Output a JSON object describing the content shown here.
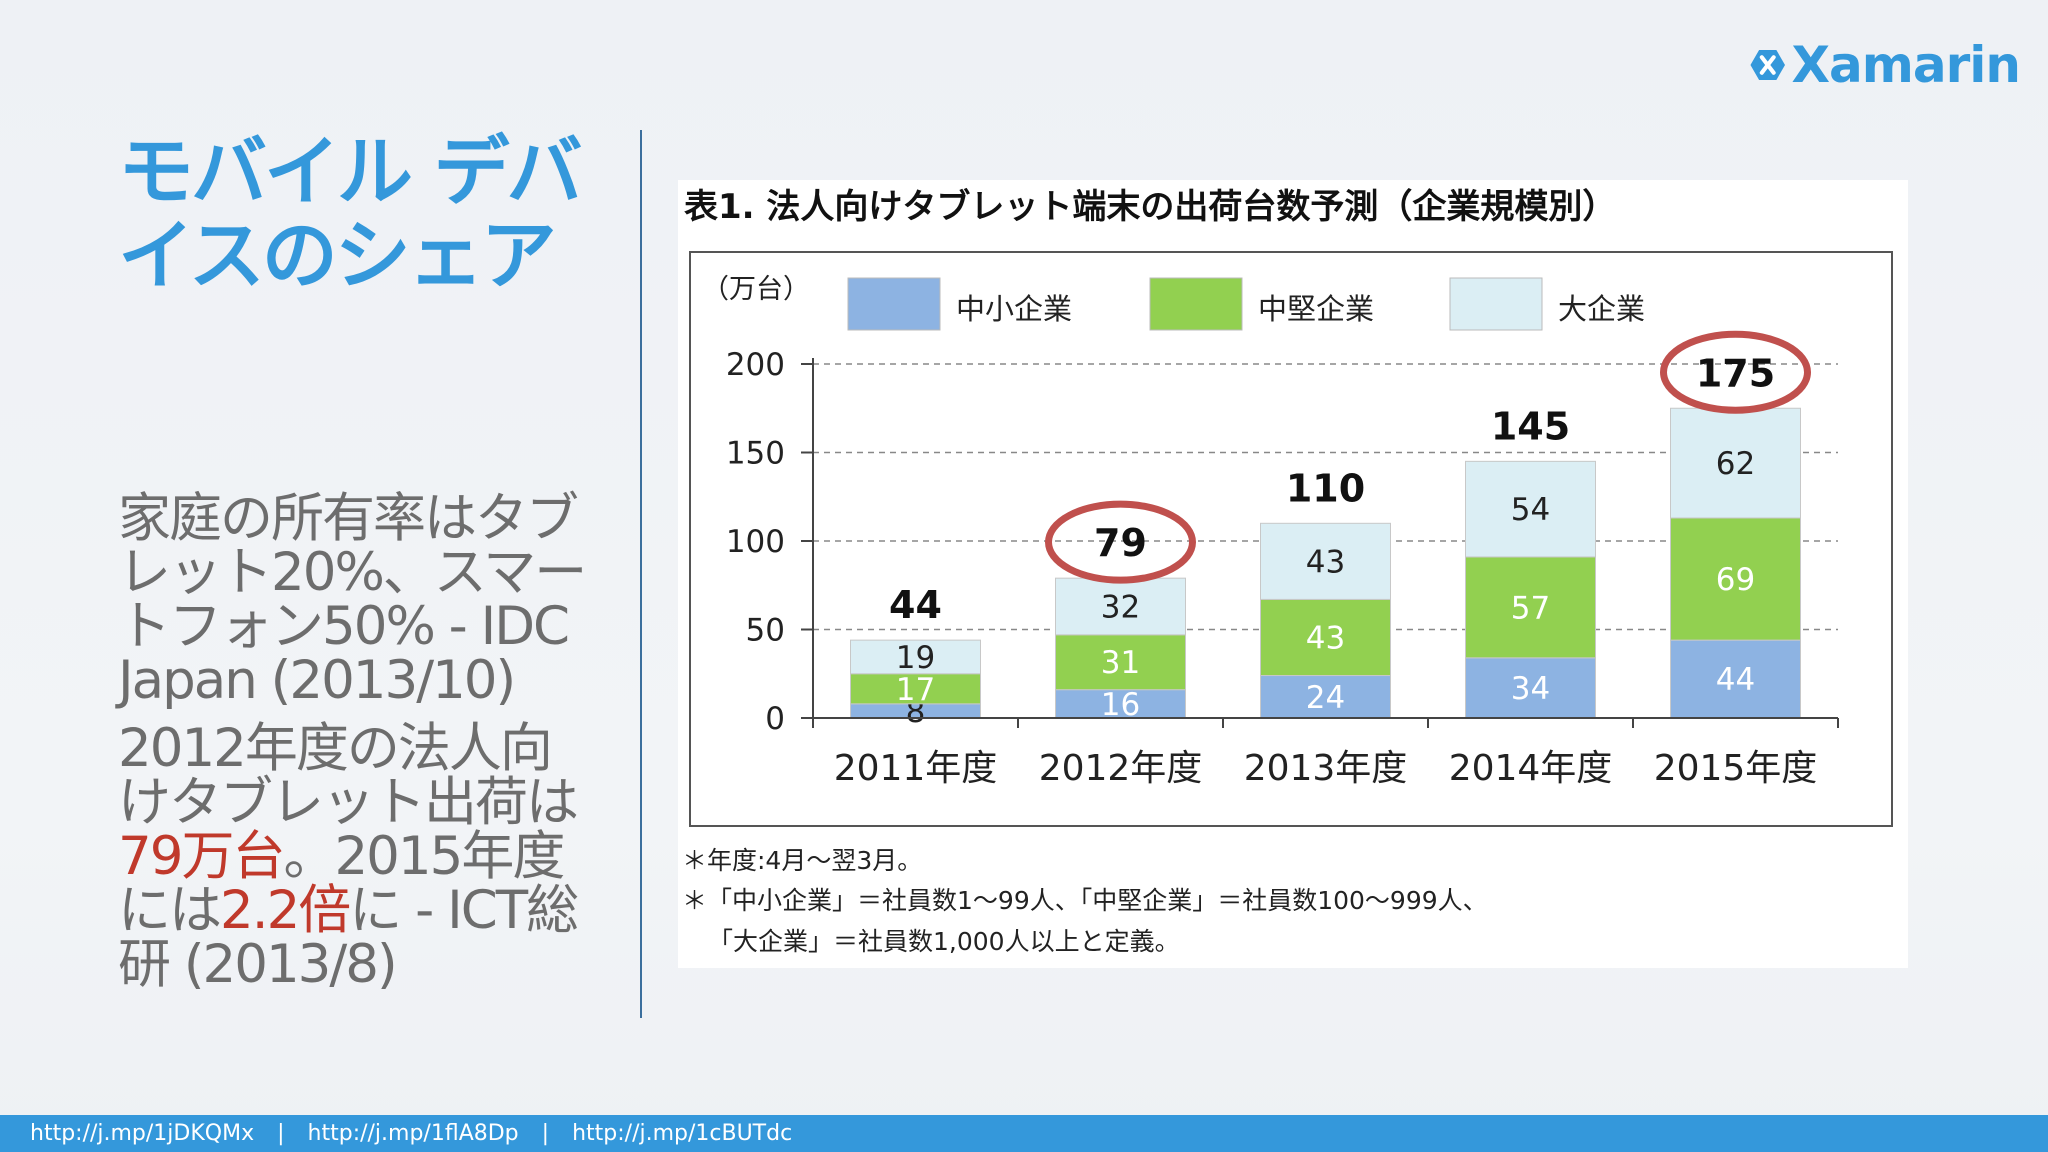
{
  "slide": {
    "logo_text": "Xamarin",
    "title_line1": "モバイル デバ",
    "title_line2": "イスのシェア",
    "para1": "家庭の所有率はタブレット20%、スマートフォン50% - IDC Japan (2013/10)",
    "para2_a": "2012年度の法人向けタブレット出荷は",
    "para2_hl1": "79万台",
    "para2_b": "。2015年度には",
    "para2_hl2": "2.2倍",
    "para2_c": "に - ICT総研 (2013/8)",
    "footer_links": [
      "http://j.mp/1jDKQMx",
      "http://j.mp/1flA8Dp",
      "http://j.mp/1cBUTdc"
    ],
    "footer_sep": "|"
  },
  "chart_data": {
    "type": "bar",
    "stacked": true,
    "title": "表1. 法人向けタブレット端末の出荷台数予測（企業規模別）",
    "unit_label": "（万台）",
    "categories": [
      "2011年度",
      "2012年度",
      "2013年度",
      "2014年度",
      "2015年度"
    ],
    "series": [
      {
        "name": "中小企業",
        "values": [
          8,
          16,
          24,
          34,
          44
        ],
        "color": "#8db3e2"
      },
      {
        "name": "中堅企業",
        "values": [
          17,
          31,
          43,
          57,
          69
        ],
        "color": "#92d050"
      },
      {
        "name": "大企業",
        "values": [
          19,
          32,
          43,
          54,
          62
        ],
        "color": "#dbeef4"
      }
    ],
    "totals": [
      44,
      79,
      110,
      145,
      175
    ],
    "highlighted_totals": [
      79,
      175
    ],
    "highlight_color": "#c0504d",
    "yticks": [
      0,
      50,
      100,
      150,
      200
    ],
    "ylim": [
      0,
      200
    ],
    "grid": true,
    "legend_position": "top",
    "notes": [
      "＊年度:4月〜翌3月。",
      "＊「中小企業」＝社員数1〜99人、「中堅企業」＝社員数100〜999人、",
      "「大企業」＝社員数1,000人以上と定義。"
    ]
  }
}
